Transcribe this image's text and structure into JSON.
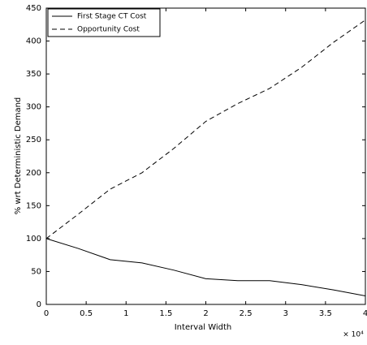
{
  "chart_data": {
    "type": "line",
    "xlabel": "Interval Width",
    "ylabel": "% wrt Deterministic Demand",
    "x_multiplier": "× 10⁴",
    "x": [
      0,
      0.4,
      0.8,
      1.2,
      1.6,
      2.0,
      2.4,
      2.8,
      3.2,
      3.6,
      4.0
    ],
    "series": [
      {
        "name": "First Stage CT Cost",
        "color": "#000000",
        "dash": "solid",
        "values": [
          100,
          85,
          68,
          63,
          52,
          39,
          36,
          36,
          30,
          22,
          13
        ]
      },
      {
        "name": "Opportunity Cost",
        "color": "#000000",
        "dash": "dashed",
        "values": [
          100,
          137,
          175,
          200,
          237,
          278,
          305,
          328,
          360,
          398,
          432
        ]
      }
    ],
    "xlim": [
      0,
      4
    ],
    "xticks": [
      0,
      0.5,
      1,
      1.5,
      2,
      2.5,
      3,
      3.5,
      4
    ],
    "ylim": [
      0,
      450
    ],
    "yticks": [
      0,
      50,
      100,
      150,
      200,
      250,
      300,
      350,
      400,
      450
    ],
    "grid": false,
    "legend": "upper-left"
  }
}
